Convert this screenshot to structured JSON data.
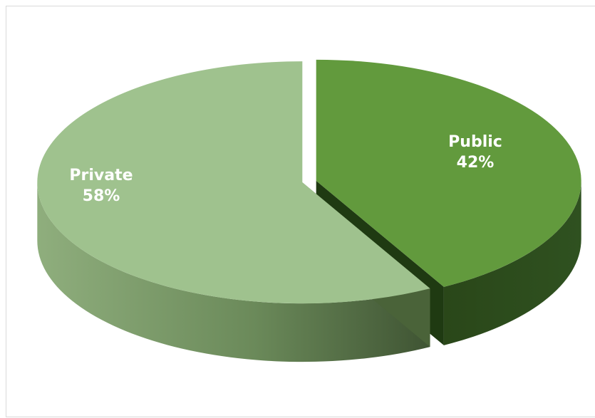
{
  "chart_data": {
    "type": "pie",
    "style": "3d-exploded",
    "title": "",
    "slices": [
      {
        "label": "Public",
        "percent_label": "42%",
        "value": 42,
        "color": "#629a3d",
        "side_color": "#2b4a1b"
      },
      {
        "label": "Private",
        "percent_label": "58%",
        "value": 58,
        "color": "#9fc28e",
        "side_color": "#6e8d5c"
      }
    ],
    "legend": "none"
  }
}
